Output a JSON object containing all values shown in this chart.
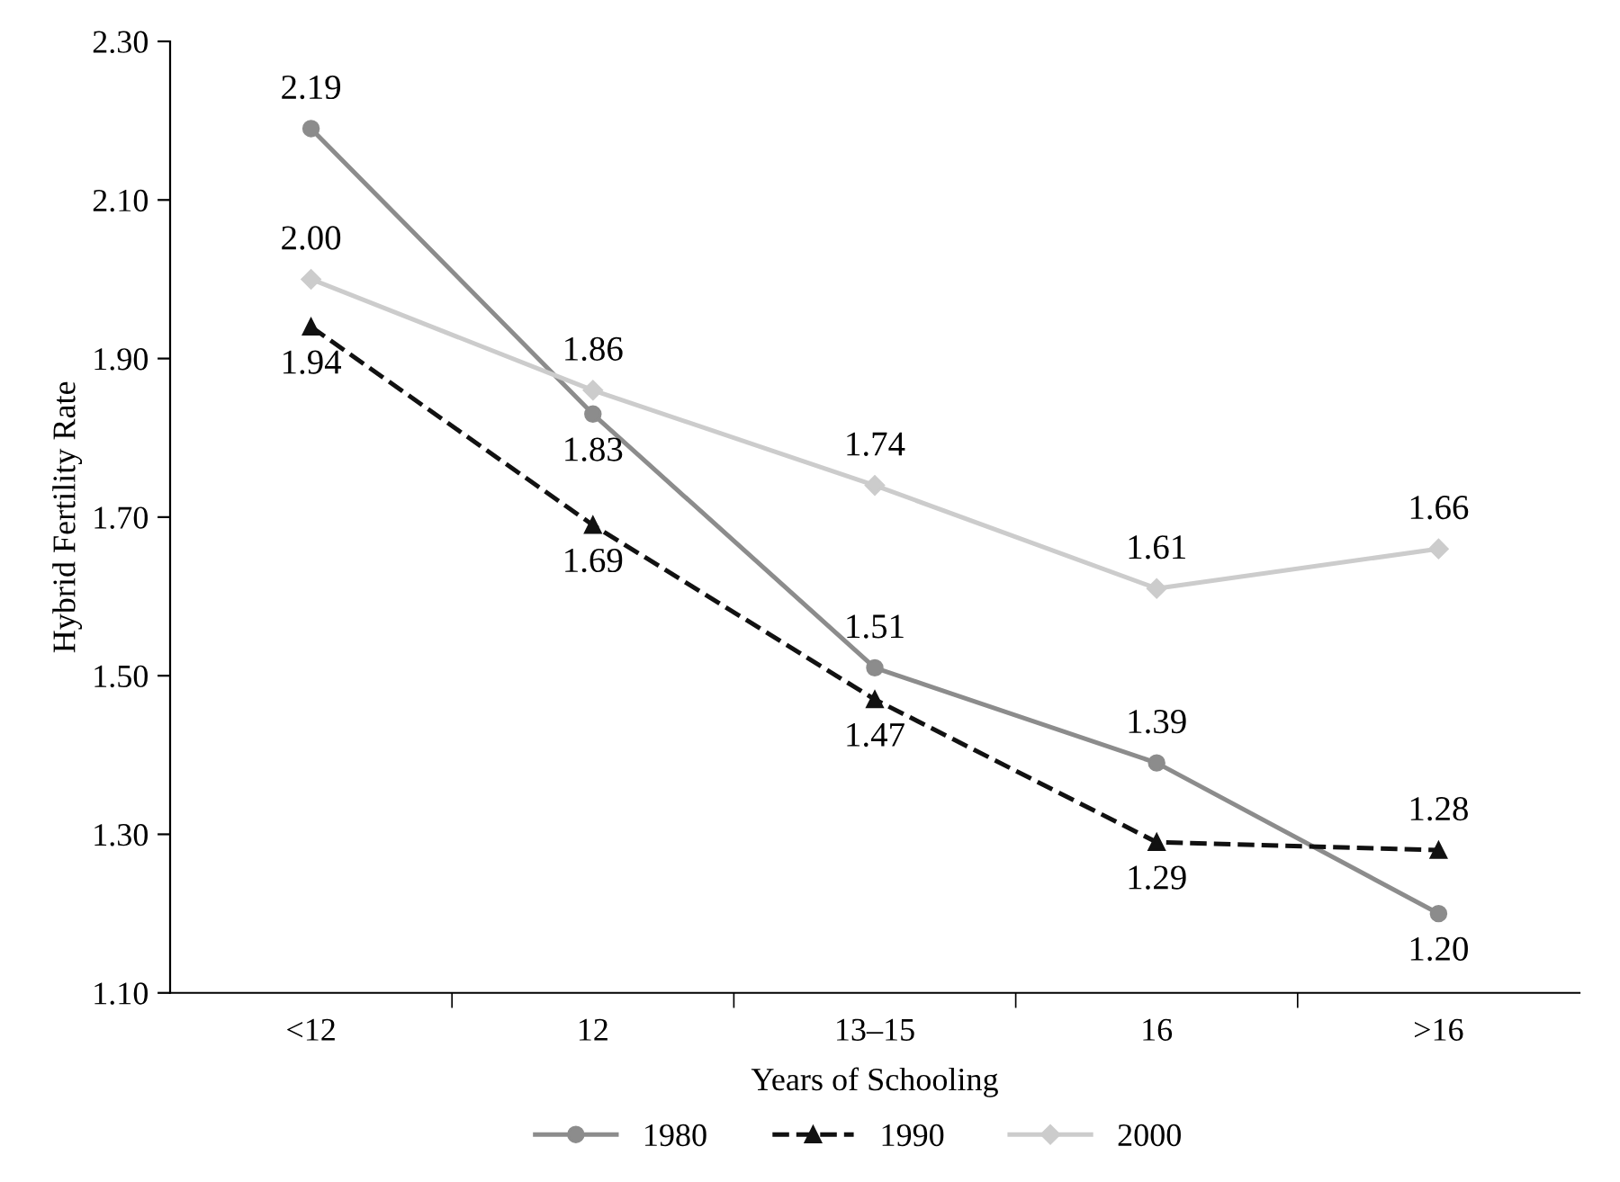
{
  "chart_data": {
    "type": "line",
    "xlabel": "Years of Schooling",
    "ylabel": "Hybrid Fertility Rate",
    "categories": [
      "<12",
      "12",
      "13–15",
      "16",
      ">16"
    ],
    "series": [
      {
        "name": "1980",
        "color": "#8c8c8c",
        "marker": "circle",
        "line_style": "solid",
        "values": [
          2.19,
          1.83,
          1.51,
          1.39,
          1.2
        ],
        "value_labels": [
          "2.19",
          "1.83",
          "1.51",
          "1.39",
          "1.20"
        ]
      },
      {
        "name": "1990",
        "color": "#111111",
        "marker": "triangle",
        "line_style": "dashed",
        "values": [
          1.94,
          1.69,
          1.47,
          1.29,
          1.28
        ],
        "value_labels": [
          "1.94",
          "1.69",
          "1.47",
          "1.29",
          "1.28"
        ]
      },
      {
        "name": "2000",
        "color": "#cccccc",
        "marker": "diamond",
        "line_style": "solid",
        "values": [
          2.0,
          1.86,
          1.74,
          1.61,
          1.66
        ],
        "value_labels": [
          "2.00",
          "1.86",
          "1.74",
          "1.61",
          "1.66"
        ]
      }
    ],
    "ylim": [
      1.1,
      2.3
    ],
    "yticks": [
      {
        "value": 1.1,
        "label": "1.10"
      },
      {
        "value": 1.3,
        "label": "1.30"
      },
      {
        "value": 1.5,
        "label": "1.50"
      },
      {
        "value": 1.7,
        "label": "1.70"
      },
      {
        "value": 1.9,
        "label": "1.90"
      },
      {
        "value": 2.1,
        "label": "2.10"
      },
      {
        "value": 2.3,
        "label": "2.30"
      }
    ],
    "grid": false,
    "legend": "bottom"
  }
}
